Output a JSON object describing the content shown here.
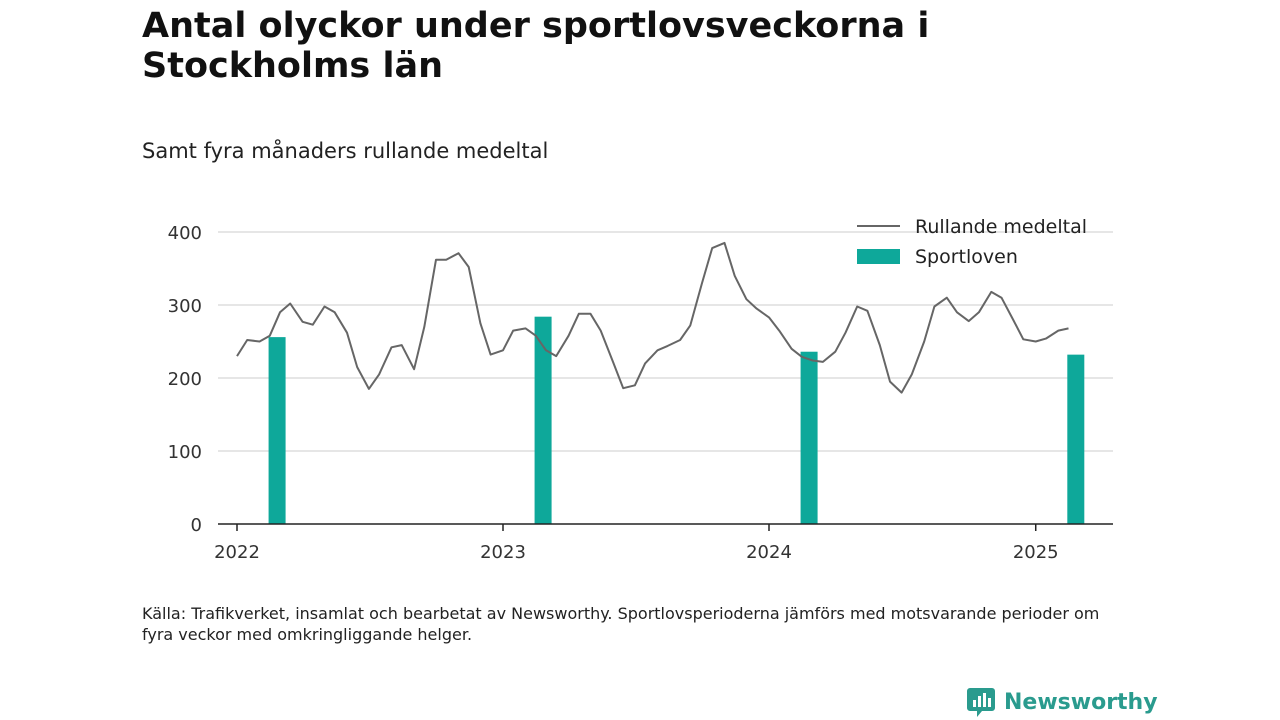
{
  "title": "Antal olyckor under sportlovsveckorna i Stockholms län",
  "subtitle": "Samt fyra månaders rullande medeltal",
  "source": "Källa: Trafikverket, insamlat och bearbetat av Newsworthy. Sportlovsperioderna jämförs med motsvarande perioder om fyra veckor med omkringliggande helger.",
  "logo_text": "Newsworthy",
  "colors": {
    "bar": "#0ea89a",
    "line": "#666666",
    "grid": "#dddddd",
    "axis": "#222222",
    "logo": "#2a9b8e"
  },
  "chart_data": {
    "type": "bar+line",
    "ylim": [
      0,
      400
    ],
    "yticks": [
      0,
      100,
      200,
      300,
      400
    ],
    "xticks": [
      "2022",
      "2023",
      "2024",
      "2025"
    ],
    "grid": "horizontal",
    "legend_position": "top-right",
    "series": [
      {
        "name": "Rullande medeltal",
        "kind": "line",
        "x": [
          "2022-01-01",
          "2022-01-15",
          "2022-02-01",
          "2022-02-15",
          "2022-03-01",
          "2022-03-15",
          "2022-04-01",
          "2022-04-15",
          "2022-05-01",
          "2022-05-15",
          "2022-06-01",
          "2022-06-15",
          "2022-07-01",
          "2022-07-15",
          "2022-08-01",
          "2022-08-15",
          "2022-09-01",
          "2022-09-15",
          "2022-10-01",
          "2022-10-15",
          "2022-11-01",
          "2022-11-15",
          "2022-12-01",
          "2022-12-15",
          "2023-01-01",
          "2023-01-15",
          "2023-02-01",
          "2023-02-15",
          "2023-03-01",
          "2023-03-15",
          "2023-04-01",
          "2023-04-15",
          "2023-05-01",
          "2023-05-15",
          "2023-06-01",
          "2023-06-15",
          "2023-07-01",
          "2023-07-15",
          "2023-08-01",
          "2023-08-15",
          "2023-09-01",
          "2023-09-15",
          "2023-10-01",
          "2023-10-15",
          "2023-11-01",
          "2023-11-15",
          "2023-12-01",
          "2023-12-15",
          "2024-01-01",
          "2024-01-15",
          "2024-02-01",
          "2024-02-15",
          "2024-03-01",
          "2024-03-15",
          "2024-04-01",
          "2024-04-15",
          "2024-05-01",
          "2024-05-15",
          "2024-06-01",
          "2024-06-15",
          "2024-07-01",
          "2024-07-15",
          "2024-08-01",
          "2024-08-15",
          "2024-09-01",
          "2024-09-15",
          "2024-10-01",
          "2024-10-15",
          "2024-11-01",
          "2024-11-15",
          "2024-12-01",
          "2024-12-15",
          "2025-01-01",
          "2025-01-15",
          "2025-02-01",
          "2025-02-15"
        ],
        "values": [
          230,
          252,
          250,
          258,
          290,
          302,
          277,
          273,
          298,
          290,
          262,
          215,
          185,
          205,
          242,
          245,
          212,
          270,
          362,
          362,
          371,
          352,
          275,
          232,
          238,
          265,
          268,
          258,
          238,
          230,
          258,
          288,
          288,
          265,
          222,
          186,
          190,
          220,
          238,
          244,
          252,
          272,
          330,
          378,
          385,
          340,
          308,
          295,
          283,
          265,
          240,
          229,
          224,
          222,
          236,
          262,
          298,
          292,
          245,
          195,
          180,
          205,
          250,
          298,
          310,
          290,
          278,
          290,
          318,
          310,
          280,
          253,
          250,
          254,
          265,
          268
        ]
      },
      {
        "name": "Sportloven",
        "kind": "bar",
        "x": [
          "2022-02-25",
          "2023-02-25",
          "2024-02-25",
          "2025-02-25"
        ],
        "values": [
          256,
          284,
          236,
          232
        ]
      }
    ]
  }
}
